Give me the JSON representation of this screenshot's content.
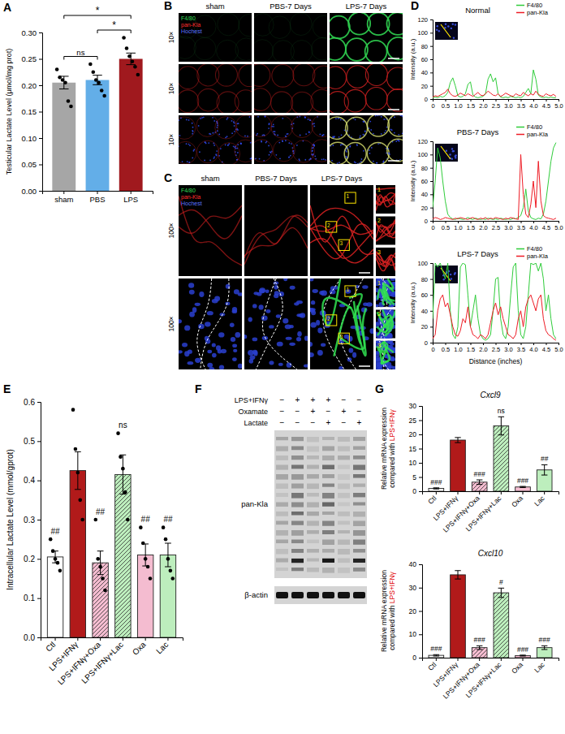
{
  "panel_letters": [
    "A",
    "B",
    "C",
    "D",
    "E",
    "F",
    "G"
  ],
  "chart_data": [
    {
      "type": "bar",
      "ylabel": "Testicular Lactate Level (μmol/mg prot)",
      "categories": [
        "sham",
        "PBS",
        "LPS"
      ],
      "values": [
        0.205,
        0.21,
        0.25
      ],
      "errors": [
        0.012,
        0.009,
        0.011
      ],
      "points": [
        [
          0.23,
          0.215,
          0.21,
          0.205,
          0.17,
          0.16
        ],
        [
          0.24,
          0.225,
          0.21,
          0.205,
          0.19,
          0.18
        ],
        [
          0.29,
          0.27,
          0.255,
          0.245,
          0.235,
          0.22
        ]
      ],
      "colors": [
        "#a6a6a6",
        "#63aee8",
        "#a0191e"
      ],
      "ylim": [
        0,
        0.3
      ],
      "yticks": [
        {
          "value": 0,
          "label": "0.00"
        },
        0.05,
        {
          "value": 0.1,
          "label": "0.10"
        },
        0.15,
        {
          "value": 0.2,
          "label": "0.20"
        },
        0.25,
        {
          "value": 0.3,
          "label": "0.30"
        }
      ],
      "annotations": [
        {
          "text": "ns",
          "between": [
            "sham",
            "PBS"
          ]
        },
        {
          "text": "*",
          "between": [
            "PBS",
            "LPS"
          ]
        },
        {
          "text": "*",
          "between": [
            "sham",
            "LPS"
          ]
        }
      ]
    },
    {
      "type": "line",
      "title": "Normal",
      "ylabel": "Intensity (a.u.)",
      "x": [
        0,
        0.1,
        0.2,
        0.3,
        0.4,
        0.5,
        0.6,
        0.7,
        0.8,
        0.9,
        1,
        1.1,
        1.2,
        1.3,
        1.4,
        1.5,
        1.6,
        1.7,
        1.8,
        1.9,
        2,
        2.1,
        2.2,
        2.3,
        2.4,
        2.5,
        2.6,
        2.7,
        2.8,
        2.9,
        3,
        3.1,
        3.2,
        3.3,
        3.4,
        3.5,
        3.6,
        3.7,
        3.8,
        3.9,
        4,
        4.1,
        4.2,
        4.3,
        4.4,
        4.5,
        4.6,
        4.7,
        4.8,
        4.9
      ],
      "xlim": [
        0,
        5
      ],
      "xticks": [
        0,
        0.5,
        {
          "value": 1,
          "label": "1.0"
        },
        1.5,
        {
          "value": 2,
          "label": "2.0"
        },
        2.5,
        {
          "value": 3,
          "label": "3.0"
        },
        3.5,
        {
          "value": 4,
          "label": "4.0"
        },
        4.5,
        {
          "value": 5,
          "label": "5.0"
        }
      ],
      "ylim": [
        0,
        120
      ],
      "yticks": [
        0,
        20,
        40,
        60,
        80,
        100,
        120
      ],
      "legend": "top right",
      "series": [
        {
          "name": "F4/80",
          "color": "#2fcc3a",
          "values": [
            2,
            3,
            2,
            4,
            3,
            5,
            10,
            25,
            32,
            20,
            5,
            3,
            4,
            8,
            22,
            26,
            6,
            3,
            2,
            3,
            4,
            8,
            30,
            38,
            26,
            32,
            8,
            3,
            2,
            3,
            2,
            4,
            3,
            2,
            3,
            2,
            4,
            10,
            16,
            8,
            44,
            30,
            6,
            3,
            2,
            3,
            2,
            3,
            2,
            2
          ]
        },
        {
          "name": "pan-Kla",
          "color": "#ee1c25",
          "values": [
            3,
            5,
            4,
            6,
            8,
            10,
            15,
            8,
            5,
            4,
            6,
            9,
            7,
            5,
            8,
            6,
            4,
            7,
            10,
            6,
            5,
            8,
            12,
            9,
            6,
            5,
            8,
            4,
            6,
            9,
            7,
            5,
            4,
            8,
            6,
            5,
            10,
            7,
            5,
            8,
            6,
            12,
            7,
            5,
            4,
            8,
            6,
            5,
            7,
            4
          ]
        }
      ]
    },
    {
      "type": "line",
      "title": "PBS-7 Days",
      "ylabel": "Intensity (a.u.)",
      "x": [
        0,
        0.1,
        0.2,
        0.3,
        0.4,
        0.5,
        0.6,
        0.7,
        0.8,
        0.9,
        1,
        1.1,
        1.2,
        1.3,
        1.4,
        1.5,
        1.6,
        1.7,
        1.8,
        1.9,
        2,
        2.1,
        2.2,
        2.3,
        2.4,
        2.5,
        2.6,
        2.7,
        2.8,
        2.9,
        3,
        3.1,
        3.2,
        3.3,
        3.4,
        3.5,
        3.6,
        3.7,
        3.8,
        3.9,
        4,
        4.1,
        4.2,
        4.3,
        4.4,
        4.5,
        4.6,
        4.7,
        4.8,
        4.9
      ],
      "xlim": [
        0,
        5
      ],
      "xticks": [
        0,
        0.5,
        {
          "value": 1,
          "label": "1.0"
        },
        1.5,
        {
          "value": 2,
          "label": "2.0"
        },
        2.5,
        {
          "value": 3,
          "label": "3.0"
        },
        3.5,
        {
          "value": 4,
          "label": "4.0"
        },
        4.5,
        {
          "value": 5,
          "label": "5.0"
        }
      ],
      "ylim": [
        0,
        120
      ],
      "yticks": [
        0,
        20,
        40,
        60,
        80,
        100,
        120
      ],
      "legend": "top right",
      "series": [
        {
          "name": "F4/80",
          "color": "#2fcc3a",
          "values": [
            20,
            60,
            110,
            95,
            60,
            30,
            10,
            5,
            3,
            2,
            4,
            3,
            2,
            3,
            5,
            3,
            2,
            4,
            3,
            2,
            3,
            2,
            4,
            3,
            2,
            3,
            2,
            4,
            3,
            2,
            3,
            2,
            4,
            3,
            5,
            8,
            20,
            48,
            15,
            5,
            3,
            2,
            4,
            3,
            10,
            30,
            60,
            90,
            110,
            118
          ]
        },
        {
          "name": "pan-Kla",
          "color": "#ee1c25",
          "values": [
            3,
            5,
            4,
            2,
            3,
            5,
            4,
            3,
            2,
            4,
            3,
            5,
            4,
            3,
            2,
            4,
            5,
            3,
            2,
            4,
            3,
            5,
            2,
            4,
            3,
            5,
            4,
            3,
            2,
            4,
            3,
            5,
            4,
            3,
            2,
            100,
            40,
            10,
            5,
            25,
            60,
            20,
            90,
            30,
            8,
            5,
            4,
            3,
            2,
            4
          ]
        }
      ]
    },
    {
      "type": "line",
      "title": "LPS-7 Days",
      "ylabel": "Intensity (a.u.)",
      "xlabel": "Distance (inches)",
      "x": [
        0,
        0.1,
        0.2,
        0.3,
        0.4,
        0.5,
        0.6,
        0.7,
        0.8,
        0.9,
        1,
        1.1,
        1.2,
        1.3,
        1.4,
        1.5,
        1.6,
        1.7,
        1.8,
        1.9,
        2,
        2.1,
        2.2,
        2.3,
        2.4,
        2.5,
        2.6,
        2.7,
        2.8,
        2.9,
        3,
        3.1,
        3.2,
        3.3,
        3.4,
        3.5,
        3.6,
        3.7,
        3.8,
        3.9,
        4,
        4.1,
        4.2,
        4.3,
        4.4,
        4.5,
        4.6,
        4.7,
        4.8,
        4.9
      ],
      "xlim": [
        0,
        5
      ],
      "xticks": [
        0,
        0.5,
        {
          "value": 1,
          "label": "1.0"
        },
        1.5,
        {
          "value": 2,
          "label": "2.0"
        },
        2.5,
        {
          "value": 3,
          "label": "3.0"
        },
        3.5,
        {
          "value": 4,
          "label": "4.0"
        },
        4.5,
        {
          "value": 5,
          "label": "5.0"
        }
      ],
      "ylim": [
        0,
        100
      ],
      "yticks": [
        0,
        20,
        40,
        60,
        80,
        100
      ],
      "legend": "top right",
      "series": [
        {
          "name": "F4/80",
          "color": "#2fcc3a",
          "values": [
            30,
            100,
            95,
            100,
            90,
            80,
            100,
            40,
            10,
            5,
            20,
            95,
            100,
            98,
            60,
            20,
            40,
            60,
            30,
            10,
            5,
            3,
            5,
            10,
            40,
            80,
            82,
            30,
            10,
            5,
            20,
            60,
            95,
            100,
            40,
            10,
            5,
            20,
            60,
            100,
            98,
            100,
            90,
            100,
            80,
            40,
            60,
            30,
            10,
            5
          ]
        },
        {
          "name": "pan-Kla",
          "color": "#ee1c25",
          "values": [
            5,
            10,
            40,
            55,
            60,
            45,
            50,
            35,
            20,
            10,
            8,
            15,
            30,
            25,
            45,
            20,
            10,
            8,
            5,
            10,
            8,
            5,
            10,
            25,
            40,
            50,
            35,
            45,
            30,
            20,
            10,
            8,
            5,
            10,
            30,
            40,
            20,
            45,
            55,
            60,
            50,
            40,
            55,
            60,
            30,
            15,
            10,
            8,
            5,
            3
          ]
        }
      ]
    },
    {
      "type": "bar",
      "ylabel": "Intracellular Lactate Level (mmol/gprot)",
      "categories": [
        "Ctl",
        "LPS+IFNγ",
        "LPS+IFNγ+Oxa",
        "LPS+IFNγ+Lac",
        "Oxa",
        "Lac"
      ],
      "values": [
        0.205,
        0.425,
        0.19,
        0.415,
        0.21,
        0.21
      ],
      "errors": [
        0.015,
        0.048,
        0.03,
        0.05,
        0.028,
        0.03
      ],
      "points": [
        [
          0.25,
          0.22,
          0.2,
          0.19,
          0.17
        ],
        [
          0.58,
          0.48,
          0.42,
          0.35,
          0.3
        ],
        [
          0.3,
          0.2,
          0.18,
          0.15,
          0.12
        ],
        [
          0.52,
          0.46,
          0.43,
          0.37,
          0.3
        ],
        [
          0.28,
          0.24,
          0.2,
          0.18,
          0.15
        ],
        [
          0.28,
          0.25,
          0.2,
          0.17,
          0.15
        ]
      ],
      "colors": [
        "#ffffff",
        "#b11a1a",
        "#f4bcd0",
        "#bdeebd",
        "#f4bcd0",
        "#bdeebd"
      ],
      "ylim": [
        0,
        0.6
      ],
      "yticks": [
        {
          "value": 0,
          "label": "0.0"
        },
        0.1,
        0.2,
        0.3,
        0.4,
        0.5,
        0.6
      ],
      "annotations": [
        {
          "text": "##",
          "category": "Ctl"
        },
        {
          "text": "##",
          "category": "LPS+IFNγ+Oxa"
        },
        {
          "text": "ns",
          "category": "LPS+IFNγ+Lac"
        },
        {
          "text": "##",
          "category": "Oxa"
        },
        {
          "text": "##",
          "category": "Lac"
        }
      ]
    },
    {
      "type": "bar",
      "title": "Cxcl9",
      "ylabel": "Relative mRNA expression compared with LPS+IFNγ",
      "categories": [
        "Ctl",
        "LPS+IFNγ",
        "LPS+IFNγ+Oxa",
        "LPS+IFNγ+Lac",
        "Oxa",
        "Lac"
      ],
      "values": [
        1,
        18,
        3.2,
        23,
        1.5,
        7.5
      ],
      "errors": [
        0.2,
        0.9,
        0.8,
        3.2,
        0.2,
        1.8
      ],
      "colors": [
        "#ffffff",
        "#b11a1a",
        "#f4bcd0",
        "#bdeebd",
        "#f4bcd0",
        "#bdeebd"
      ],
      "ylim": [
        0,
        30
      ],
      "yticks": [
        0,
        5,
        10,
        15,
        20,
        25,
        30
      ],
      "annotations": [
        {
          "text": "###",
          "category": "Ctl"
        },
        {
          "text": "###",
          "category": "LPS+IFNγ+Oxa"
        },
        {
          "text": "ns",
          "category": "LPS+IFNγ+Lac"
        },
        {
          "text": "###",
          "category": "Oxa"
        },
        {
          "text": "##",
          "category": "Lac"
        }
      ]
    },
    {
      "type": "bar",
      "title": "Cxcl10",
      "ylabel": "Relative mRNA expression compared with LPS+IFNγ",
      "categories": [
        "Ctl",
        "LPS+IFNγ",
        "LPS+IFNγ+Oxa",
        "LPS+IFNγ+Lac",
        "Oxa",
        "Lac"
      ],
      "values": [
        1,
        35.5,
        4.3,
        27.8,
        0.9,
        4.3
      ],
      "errors": [
        0.3,
        1.8,
        0.8,
        2,
        0.2,
        0.8
      ],
      "colors": [
        "#ffffff",
        "#b11a1a",
        "#f4bcd0",
        "#bdeebd",
        "#f4bcd0",
        "#bdeebd"
      ],
      "ylim": [
        0,
        40
      ],
      "yticks": [
        0,
        10,
        20,
        30,
        40
      ],
      "annotations": [
        {
          "text": "###",
          "category": "Ctl"
        },
        {
          "text": "###",
          "category": "LPS+IFNγ+Oxa"
        },
        {
          "text": "#",
          "category": "LPS+IFNγ+Lac"
        },
        {
          "text": "###",
          "category": "Oxa"
        },
        {
          "text": "###",
          "category": "Lac"
        }
      ]
    }
  ],
  "panel_b": {
    "columns": [
      "sham",
      "PBS-7 Days",
      "LPS-7 Days"
    ],
    "rows": [
      "10×",
      "10×",
      "10×"
    ],
    "channels": [
      {
        "name": "F4/80",
        "color": "#33dd55"
      },
      {
        "name": "pan-Kla",
        "color": "#ff3030"
      },
      {
        "name": "Hochest",
        "color": "#5a74ff"
      }
    ]
  },
  "panel_c": {
    "columns": [
      "sham",
      "PBS-7 Days",
      "LPS-7 Days"
    ],
    "rows": [
      "100×",
      "100×"
    ],
    "insets": [
      "1",
      "2",
      "3"
    ],
    "channels": [
      {
        "name": "F4/80",
        "color": "#33dd55"
      },
      {
        "name": "pan-Kla",
        "color": "#ff3030"
      },
      {
        "name": "Hochest",
        "color": "#5a74ff"
      }
    ]
  },
  "panel_f": {
    "conditions": [
      {
        "name": "LPS+IFNγ",
        "signs": [
          "−",
          "+",
          "+",
          "+",
          "−",
          "−"
        ]
      },
      {
        "name": "Oxamate",
        "signs": [
          "−",
          "−",
          "+",
          "−",
          "+",
          "−"
        ]
      },
      {
        "name": "Lactate",
        "signs": [
          "−",
          "−",
          "−",
          "+",
          "−",
          "+"
        ]
      }
    ],
    "bands": [
      "pan-Kla",
      "β-actin"
    ]
  }
}
